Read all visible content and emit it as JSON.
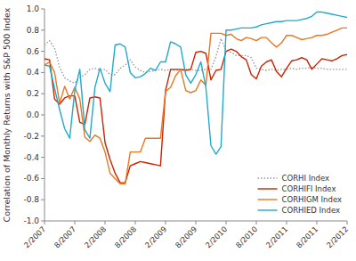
{
  "chart_data": {
    "type": "line",
    "y_label": "Correlation of Monthly Returns with S&P 500 Index",
    "categories": [
      "2/2007",
      null,
      null,
      null,
      null,
      null,
      "8/2007",
      null,
      null,
      null,
      null,
      null,
      "2/2008",
      null,
      null,
      null,
      null,
      null,
      "8/2008",
      null,
      null,
      null,
      null,
      null,
      "2/2009",
      null,
      null,
      null,
      null,
      null,
      "8/2009",
      null,
      null,
      null,
      null,
      null,
      "2/2010",
      null,
      null,
      null,
      null,
      null,
      "8/2010",
      null,
      null,
      null,
      null,
      null,
      "2/2011",
      null,
      null,
      null,
      null,
      null,
      "8/2011",
      null,
      null,
      null,
      null,
      null,
      "2/2012"
    ],
    "ylim": [
      -1,
      1
    ],
    "yticks": [
      {
        "value": -1,
        "label": "-1.0"
      },
      -0.8,
      -0.6,
      -0.4,
      -0.2,
      {
        "value": 0,
        "label": "0.0"
      },
      0.2,
      0.4,
      0.6,
      0.8,
      {
        "value": 1,
        "label": "1.0"
      }
    ],
    "grid": false,
    "legend": "lower right",
    "series": [
      {
        "name": "CORHI Index",
        "color": "#999999",
        "line_style": "dotted",
        "values": [
          0.66,
          0.7,
          0.63,
          0.45,
          0.35,
          0.32,
          0.3,
          0.35,
          0.38,
          0.43,
          0.44,
          0.42,
          0.43,
          0.38,
          0.38,
          0.44,
          0.47,
          0.52,
          0.45,
          0.42,
          0.4,
          0.41,
          0.42,
          0.43,
          0.42,
          0.43,
          0.42,
          0.43,
          0.43,
          0.43,
          0.42,
          0.42,
          0.43,
          0.43,
          0.55,
          0.72,
          0.61,
          0.59,
          0.56,
          0.56,
          0.56,
          0.54,
          0.44,
          0.43,
          0.42,
          0.43,
          0.42,
          0.43,
          0.43,
          0.44,
          0.43,
          0.44,
          0.44,
          0.45,
          0.44,
          0.44,
          0.43,
          0.43,
          0.43,
          0.43,
          0.43
        ]
      },
      {
        "name": "CORHIFI Index",
        "color": "#cc2200",
        "line_style": "solid",
        "values": [
          0.53,
          0.52,
          0.15,
          0.1,
          0.16,
          0.18,
          0.18,
          -0.07,
          -0.09,
          0.16,
          0.17,
          0.16,
          -0.26,
          -0.42,
          -0.55,
          -0.64,
          -0.64,
          -0.48,
          -0.46,
          -0.44,
          -0.45,
          -0.46,
          -0.47,
          -0.48,
          0.23,
          0.43,
          0.43,
          0.43,
          0.42,
          0.43,
          0.59,
          0.6,
          0.58,
          0.33,
          0.42,
          0.43,
          0.6,
          0.62,
          0.6,
          0.55,
          0.52,
          0.38,
          0.34,
          0.46,
          0.5,
          0.52,
          0.41,
          0.36,
          0.44,
          0.51,
          0.52,
          0.54,
          0.52,
          0.43,
          0.48,
          0.53,
          0.52,
          0.51,
          0.53,
          0.56,
          0.57
        ]
      },
      {
        "name": "CORHIGM Index",
        "color": "#e87722",
        "line_style": "solid",
        "values": [
          0.47,
          0.5,
          0.4,
          0.11,
          0.27,
          0.15,
          0.26,
          0.15,
          -0.21,
          -0.25,
          -0.19,
          -0.22,
          -0.35,
          -0.55,
          -0.6,
          -0.65,
          -0.65,
          -0.35,
          -0.35,
          -0.35,
          -0.22,
          -0.22,
          -0.22,
          -0.22,
          0.22,
          0.26,
          0.37,
          0.43,
          0.23,
          0.21,
          0.23,
          0.33,
          0.28,
          0.77,
          0.77,
          0.77,
          0.75,
          0.76,
          0.72,
          0.7,
          0.73,
          0.72,
          0.7,
          0.73,
          0.73,
          0.68,
          0.64,
          0.68,
          0.75,
          0.75,
          0.73,
          0.71,
          0.72,
          0.73,
          0.75,
          0.75,
          0.76,
          0.78,
          0.8,
          0.82,
          0.82
        ]
      },
      {
        "name": "CORHIED Index",
        "color": "#22aacc",
        "line_style": "solid",
        "values": [
          0.47,
          0.46,
          0.25,
          0.05,
          -0.13,
          -0.22,
          0.23,
          0.43,
          -0.14,
          -0.22,
          0.26,
          0.44,
          0.3,
          0.22,
          0.66,
          0.67,
          0.64,
          0.4,
          0.35,
          0.36,
          0.39,
          0.44,
          0.42,
          0.5,
          0.5,
          0.69,
          0.67,
          0.64,
          0.38,
          0.3,
          0.38,
          0.5,
          0.26,
          -0.29,
          -0.37,
          -0.3,
          0.8,
          0.8,
          0.81,
          0.82,
          0.82,
          0.82,
          0.83,
          0.85,
          0.86,
          0.87,
          0.88,
          0.88,
          0.89,
          0.89,
          0.89,
          0.9,
          0.91,
          0.93,
          0.97,
          0.97,
          0.96,
          0.95,
          0.94,
          0.93,
          0.92
        ]
      }
    ]
  }
}
